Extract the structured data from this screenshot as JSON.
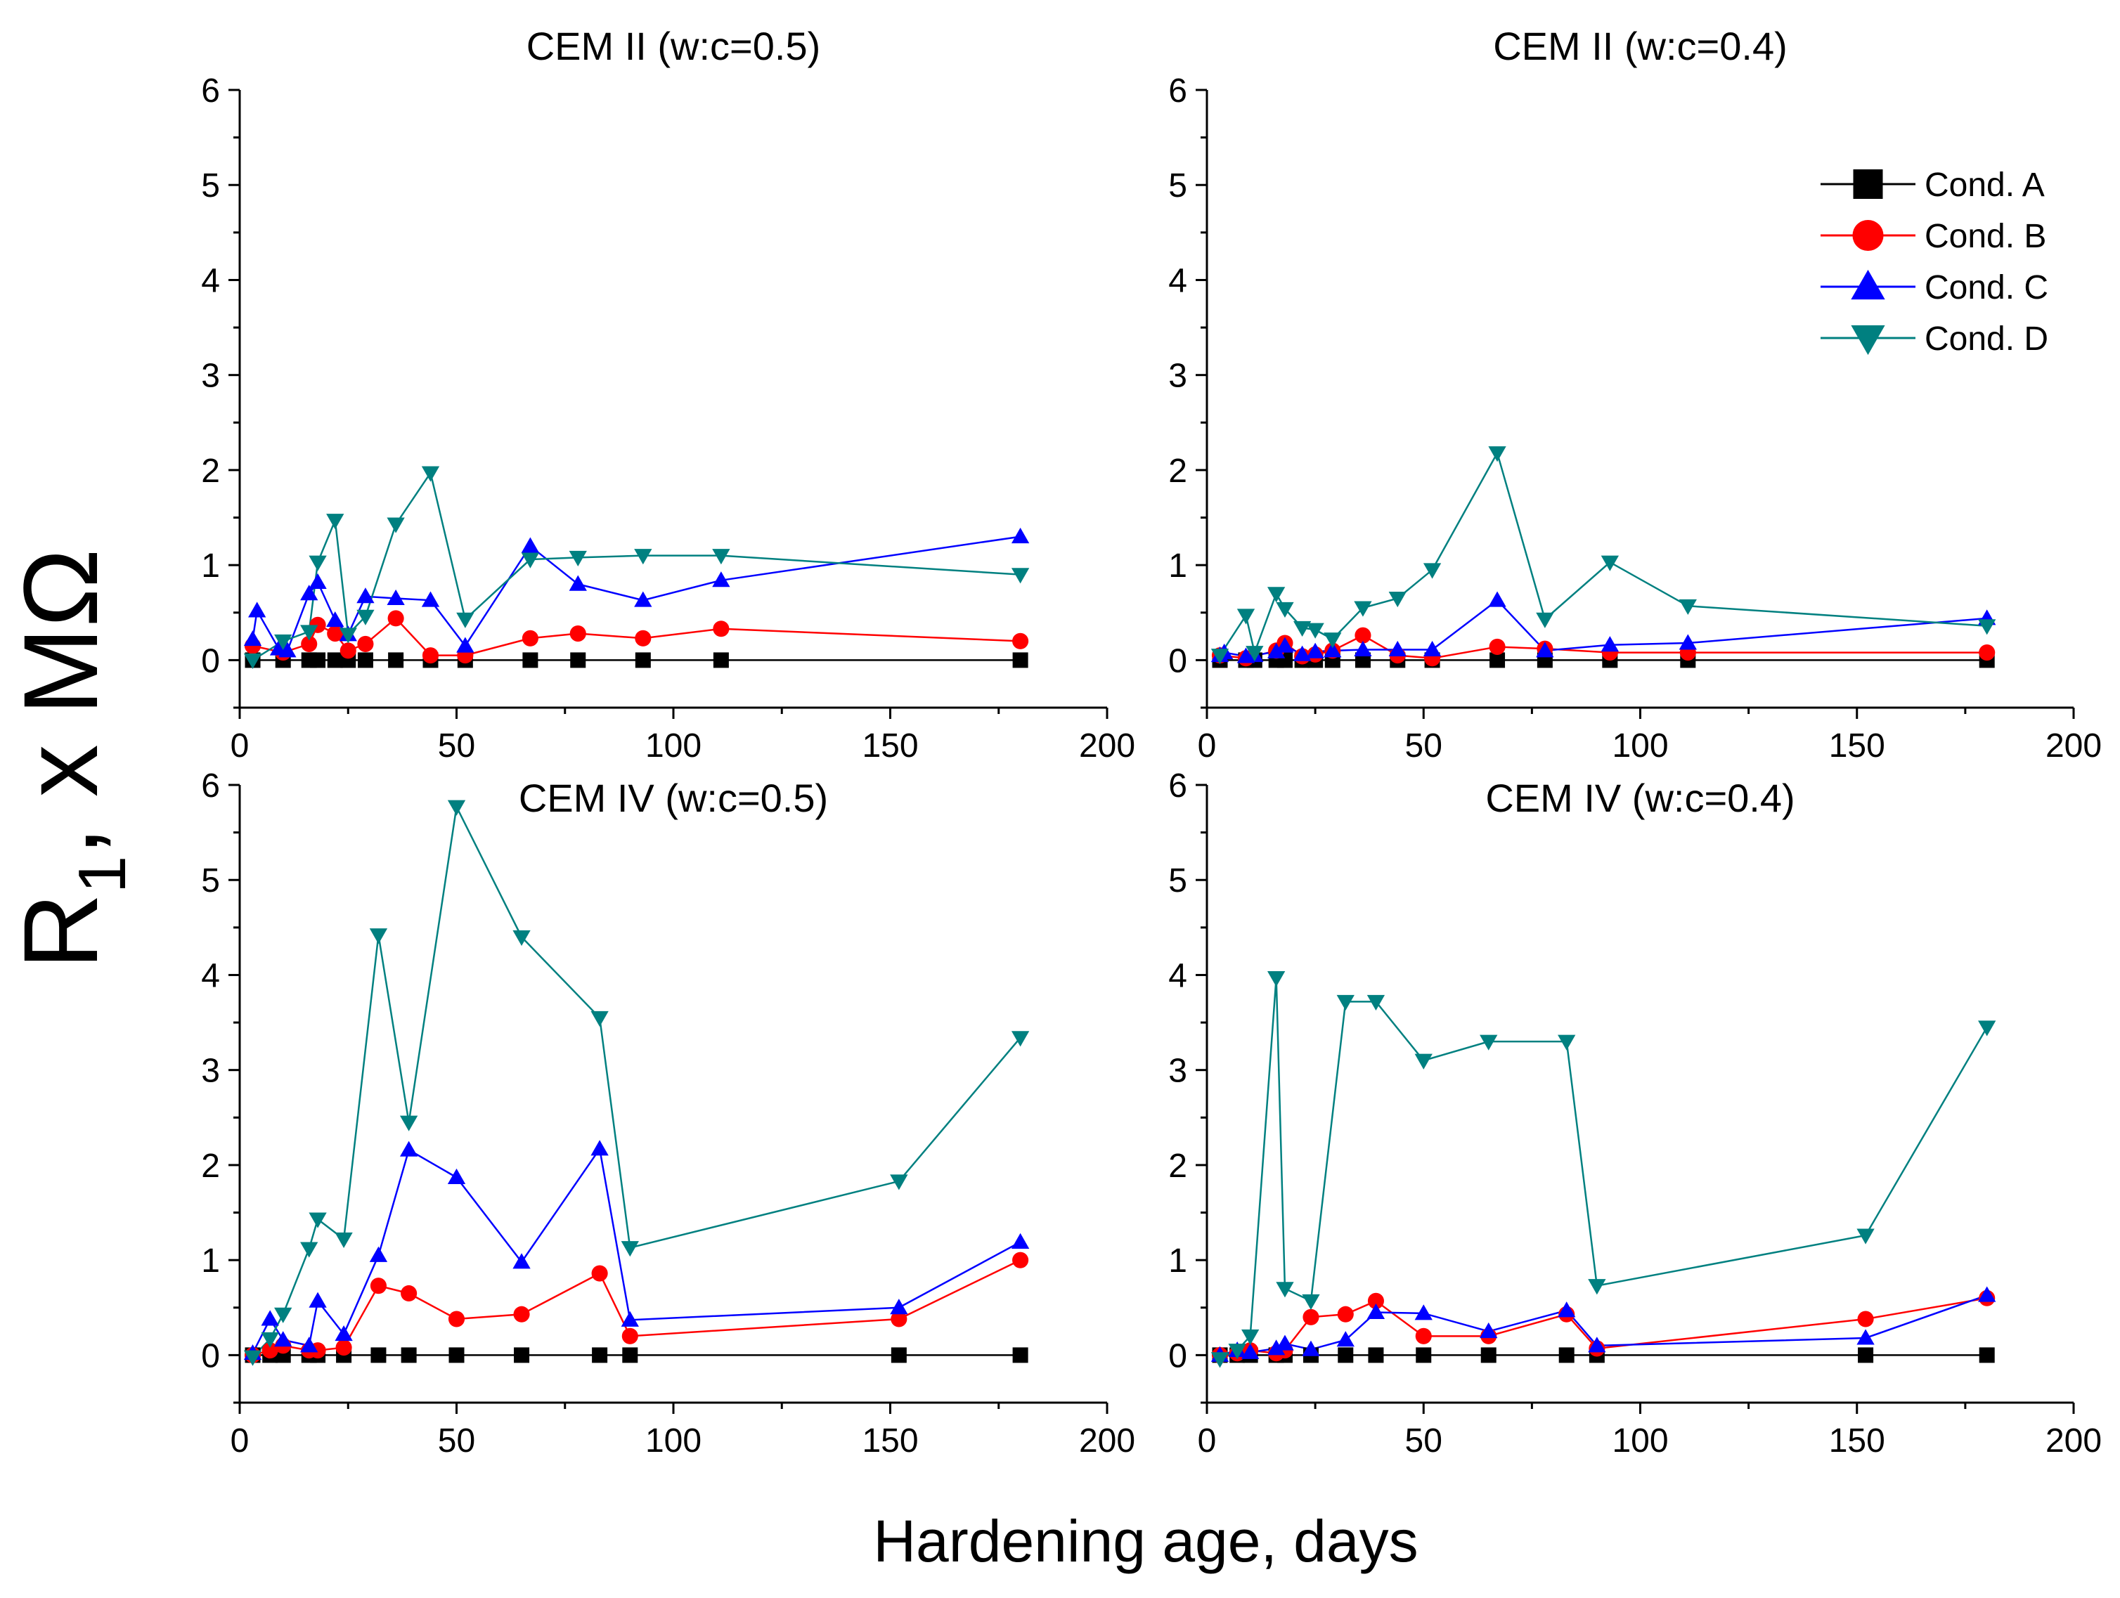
{
  "figure": {
    "xlabel": "Hardening age, days",
    "ylabel": {
      "main": "R",
      "subscript": "1",
      "suffix": ", x MΩ"
    }
  },
  "legend": {
    "entries": [
      {
        "label": "Cond. A",
        "color": "#000000",
        "marker": "square"
      },
      {
        "label": "Cond. B",
        "color": "#ff0000",
        "marker": "circle"
      },
      {
        "label": "Cond. C",
        "color": "#0000ff",
        "marker": "triangle-up"
      },
      {
        "label": "Cond. D",
        "color": "#008080",
        "marker": "triangle-down"
      }
    ]
  },
  "chart_data": [
    {
      "type": "line",
      "title": "CEM II (w:c=0.5)",
      "xlim": [
        0,
        200
      ],
      "ylim": [
        -0.5,
        6
      ],
      "xticks": [
        0,
        50,
        100,
        150,
        200
      ],
      "yticks": [
        0,
        1,
        2,
        3,
        4,
        5,
        6
      ],
      "series": [
        {
          "name": "Cond. A",
          "x": [
            3,
            10,
            16,
            18,
            22,
            25,
            29,
            36,
            44,
            52,
            67,
            78,
            93,
            111,
            180
          ],
          "y": [
            0,
            0,
            0,
            0,
            0,
            0,
            0,
            0,
            0,
            0,
            0,
            0,
            0,
            0,
            0
          ]
        },
        {
          "name": "Cond. B",
          "x": [
            3,
            10,
            16,
            18,
            22,
            25,
            29,
            36,
            44,
            52,
            67,
            78,
            93,
            111,
            180
          ],
          "y": [
            0.15,
            0.08,
            0.17,
            0.37,
            0.28,
            0.1,
            0.17,
            0.44,
            0.05,
            0.05,
            0.23,
            0.28,
            0.23,
            0.33,
            0.2
          ]
        },
        {
          "name": "Cond. C",
          "x": [
            3,
            4,
            9,
            11,
            16,
            18,
            22,
            25,
            29,
            36,
            44,
            52,
            67,
            78,
            93,
            111,
            180
          ],
          "y": [
            0.22,
            0.52,
            0.12,
            0.1,
            0.7,
            0.82,
            0.42,
            0.27,
            0.67,
            0.65,
            0.63,
            0.15,
            1.2,
            0.8,
            0.63,
            0.84,
            1.3
          ]
        },
        {
          "name": "Cond. D",
          "x": [
            3,
            10,
            16,
            18,
            22,
            25,
            29,
            36,
            44,
            52,
            67,
            78,
            93,
            111,
            180
          ],
          "y": [
            0.0,
            0.2,
            0.3,
            1.03,
            1.47,
            0.27,
            0.46,
            1.43,
            1.97,
            0.43,
            1.06,
            1.08,
            1.1,
            1.1,
            0.9
          ]
        }
      ]
    },
    {
      "type": "line",
      "title": "CEM II (w:c=0.4)",
      "xlim": [
        0,
        200
      ],
      "ylim": [
        -0.5,
        6
      ],
      "xticks": [
        0,
        50,
        100,
        150,
        200
      ],
      "yticks": [
        0,
        1,
        2,
        3,
        4,
        5,
        6
      ],
      "series": [
        {
          "name": "Cond. A",
          "x": [
            3,
            9,
            11,
            16,
            18,
            22,
            25,
            29,
            36,
            44,
            52,
            67,
            78,
            93,
            111,
            180
          ],
          "y": [
            0,
            0,
            0,
            0,
            0,
            0,
            0,
            0,
            0,
            0,
            0,
            0,
            0,
            0,
            0,
            0
          ]
        },
        {
          "name": "Cond. B",
          "x": [
            3,
            9,
            16,
            18,
            22,
            25,
            29,
            36,
            44,
            52,
            67,
            78,
            93,
            111,
            180
          ],
          "y": [
            0.05,
            0.02,
            0.1,
            0.18,
            0.04,
            0.06,
            0.1,
            0.26,
            0.05,
            0.02,
            0.14,
            0.12,
            0.08,
            0.08,
            0.08
          ]
        },
        {
          "name": "Cond. C",
          "x": [
            3,
            4,
            9,
            11,
            16,
            18,
            22,
            25,
            29,
            36,
            44,
            52,
            67,
            78,
            93,
            111,
            180
          ],
          "y": [
            0.05,
            0.08,
            0.04,
            0.05,
            0.09,
            0.15,
            0.06,
            0.09,
            0.1,
            0.11,
            0.11,
            0.11,
            0.63,
            0.1,
            0.16,
            0.18,
            0.44
          ]
        },
        {
          "name": "Cond. D",
          "x": [
            3,
            9,
            11,
            16,
            18,
            22,
            25,
            29,
            36,
            44,
            52,
            67,
            78,
            93,
            111,
            180
          ],
          "y": [
            0.05,
            0.47,
            0.08,
            0.7,
            0.54,
            0.34,
            0.32,
            0.22,
            0.55,
            0.65,
            0.95,
            2.18,
            0.43,
            1.03,
            0.57,
            0.36
          ]
        }
      ]
    },
    {
      "type": "line",
      "title": "CEM IV (w:c=0.5)",
      "xlim": [
        0,
        200
      ],
      "ylim": [
        -0.5,
        6
      ],
      "xticks": [
        0,
        50,
        100,
        150,
        200
      ],
      "yticks": [
        0,
        1,
        2,
        3,
        4,
        5,
        6
      ],
      "series": [
        {
          "name": "Cond. A",
          "x": [
            3,
            7,
            10,
            16,
            18,
            24,
            32,
            39,
            50,
            65,
            83,
            90,
            152,
            180
          ],
          "y": [
            0,
            0,
            0,
            0,
            0,
            0,
            0,
            0,
            0,
            0,
            0,
            0,
            0,
            0
          ]
        },
        {
          "name": "Cond. B",
          "x": [
            3,
            7,
            10,
            16,
            18,
            24,
            32,
            39,
            50,
            65,
            83,
            90,
            152,
            180
          ],
          "y": [
            0.0,
            0.05,
            0.1,
            0.05,
            0.05,
            0.08,
            0.73,
            0.65,
            0.38,
            0.43,
            0.86,
            0.2,
            0.38,
            1.0
          ]
        },
        {
          "name": "Cond. C",
          "x": [
            3,
            7,
            10,
            16,
            18,
            24,
            32,
            39,
            50,
            65,
            83,
            90,
            152,
            180
          ],
          "y": [
            0.02,
            0.38,
            0.16,
            0.1,
            0.57,
            0.22,
            1.05,
            2.16,
            1.87,
            0.98,
            2.17,
            0.37,
            0.5,
            1.19
          ]
        },
        {
          "name": "Cond. D",
          "x": [
            3,
            7,
            10,
            16,
            18,
            24,
            32,
            39,
            50,
            65,
            83,
            90,
            152,
            180
          ],
          "y": [
            -0.02,
            0.17,
            0.43,
            1.12,
            1.43,
            1.22,
            4.42,
            2.45,
            5.77,
            4.4,
            3.55,
            1.13,
            1.83,
            3.34
          ]
        }
      ]
    },
    {
      "type": "line",
      "title": "CEM IV (w:c=0.4)",
      "xlim": [
        0,
        200
      ],
      "ylim": [
        -0.5,
        6
      ],
      "xticks": [
        0,
        50,
        100,
        150,
        200
      ],
      "yticks": [
        0,
        1,
        2,
        3,
        4,
        5,
        6
      ],
      "series": [
        {
          "name": "Cond. A",
          "x": [
            3,
            7,
            10,
            16,
            18,
            24,
            32,
            39,
            50,
            65,
            83,
            90,
            152,
            180
          ],
          "y": [
            0,
            0,
            0,
            0,
            0,
            0,
            0,
            0,
            0,
            0,
            0,
            0,
            0,
            0
          ]
        },
        {
          "name": "Cond. B",
          "x": [
            3,
            7,
            10,
            16,
            18,
            24,
            32,
            39,
            50,
            65,
            83,
            90,
            152,
            180
          ],
          "y": [
            0.0,
            0.02,
            0.05,
            0.02,
            0.05,
            0.4,
            0.43,
            0.57,
            0.2,
            0.2,
            0.43,
            0.07,
            0.38,
            0.6
          ]
        },
        {
          "name": "Cond. C",
          "x": [
            3,
            7,
            10,
            16,
            18,
            24,
            32,
            39,
            50,
            65,
            83,
            90,
            152,
            180
          ],
          "y": [
            0.0,
            0.05,
            0.03,
            0.07,
            0.12,
            0.06,
            0.16,
            0.45,
            0.44,
            0.25,
            0.47,
            0.1,
            0.18,
            0.63
          ]
        },
        {
          "name": "Cond. D",
          "x": [
            3,
            7,
            10,
            16,
            18,
            24,
            32,
            39,
            50,
            65,
            83,
            90,
            152,
            180
          ],
          "y": [
            -0.04,
            0.05,
            0.2,
            3.97,
            0.7,
            0.57,
            3.72,
            3.72,
            3.1,
            3.3,
            3.3,
            0.73,
            1.26,
            3.45
          ]
        }
      ]
    }
  ]
}
